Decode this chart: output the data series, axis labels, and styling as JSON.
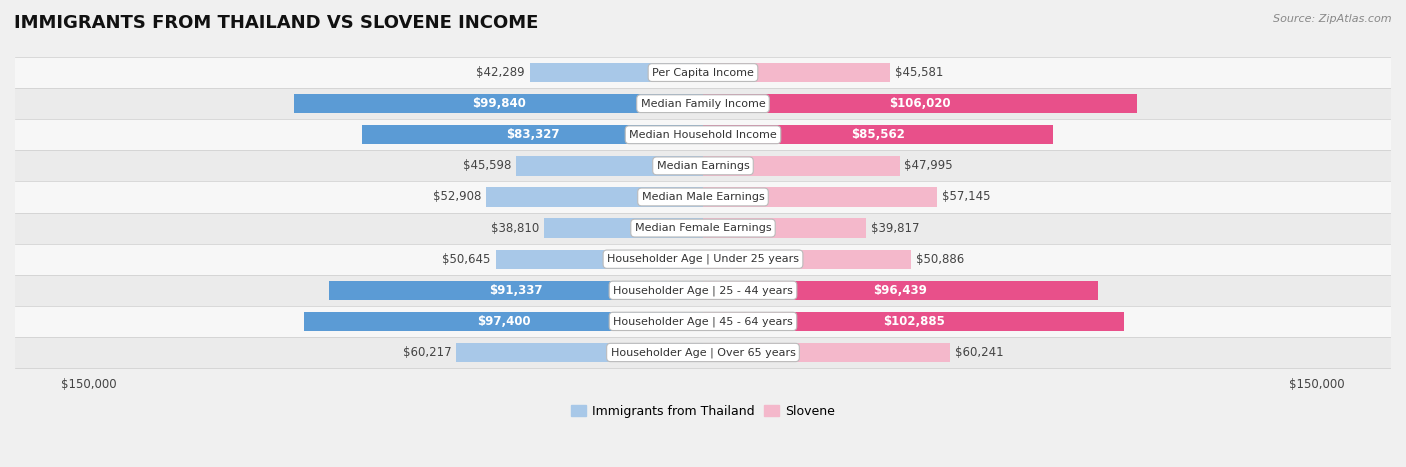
{
  "title": "IMMIGRANTS FROM THAILAND VS SLOVENE INCOME",
  "source": "Source: ZipAtlas.com",
  "categories": [
    "Per Capita Income",
    "Median Family Income",
    "Median Household Income",
    "Median Earnings",
    "Median Male Earnings",
    "Median Female Earnings",
    "Householder Age | Under 25 years",
    "Householder Age | 25 - 44 years",
    "Householder Age | 45 - 64 years",
    "Householder Age | Over 65 years"
  ],
  "thailand_values": [
    42289,
    99840,
    83327,
    45598,
    52908,
    38810,
    50645,
    91337,
    97400,
    60217
  ],
  "slovene_values": [
    45581,
    106020,
    85562,
    47995,
    57145,
    39817,
    50886,
    96439,
    102885,
    60241
  ],
  "thailand_labels": [
    "$42,289",
    "$99,840",
    "$83,327",
    "$45,598",
    "$52,908",
    "$38,810",
    "$50,645",
    "$91,337",
    "$97,400",
    "$60,217"
  ],
  "slovene_labels": [
    "$45,581",
    "$106,020",
    "$85,562",
    "$47,995",
    "$57,145",
    "$39,817",
    "$50,886",
    "$96,439",
    "$102,885",
    "$60,241"
  ],
  "thailand_color_light": "#a8c8e8",
  "thailand_color_dark": "#5b9bd5",
  "slovene_color_light": "#f4b8cb",
  "slovene_color_dark": "#e8508a",
  "inside_label_threshold": 70000,
  "max_value": 150000,
  "bar_height": 0.62,
  "bg_color": "#f0f0f0",
  "row_bg_light": "#f7f7f7",
  "row_bg_dark": "#ebebeb",
  "legend_label_thailand": "Immigrants from Thailand",
  "legend_label_slovene": "Slovene",
  "title_fontsize": 13,
  "label_fontsize": 8.5,
  "category_fontsize": 8,
  "axis_label_fontsize": 8.5
}
